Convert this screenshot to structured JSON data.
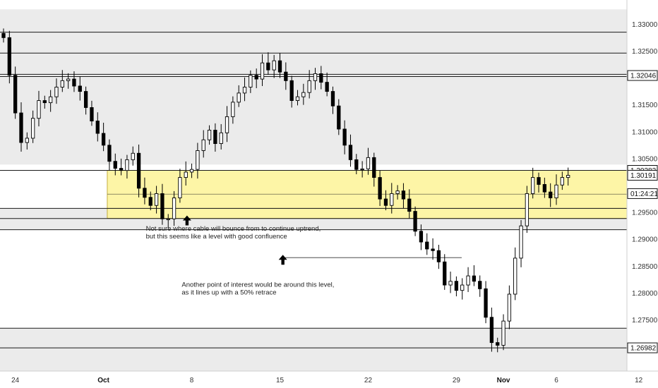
{
  "chart_data": {
    "type": "candlestick",
    "title": "",
    "ylim": [
      1.2655,
      1.3345
    ],
    "xlim": [
      0,
      93
    ],
    "y_ticks": [
      "1.33000",
      "1.32500",
      "1.32046",
      "1.31500",
      "1.31000",
      "1.30500",
      "1.30282",
      "1.30191",
      "01:24:21",
      "1.29500",
      "1.29000",
      "1.28500",
      "1.28000",
      "1.27500",
      "1.26982"
    ],
    "y_tick_values": [
      1.33,
      1.325,
      1.32046,
      1.315,
      1.31,
      1.305,
      1.30282,
      1.30191,
      1.2985,
      1.295,
      1.29,
      1.285,
      1.28,
      1.275,
      1.26982
    ],
    "x_ticks": [
      {
        "label": "24",
        "x": 2,
        "bold": false
      },
      {
        "label": "Oct",
        "x": 17,
        "bold": true
      },
      {
        "label": "8",
        "x": 32,
        "bold": false
      },
      {
        "label": "15",
        "x": 47,
        "bold": false
      },
      {
        "label": "22",
        "x": 62,
        "bold": false
      },
      {
        "label": "29",
        "x": 77,
        "bold": false
      },
      {
        "label": "Nov",
        "x": 85,
        "bold": true
      },
      {
        "label": "6",
        "x": 94,
        "bold": false
      },
      {
        "label": "12",
        "x": 108,
        "bold": false
      }
    ],
    "series": [
      {
        "type": "close-line",
        "values": [
          1.3275,
          1.3205,
          1.3135,
          1.308,
          1.3088,
          1.3125,
          1.3158,
          1.3154,
          1.3165,
          1.3183,
          1.3195,
          1.3198,
          1.3185,
          1.3175,
          1.3145,
          1.312,
          1.3097,
          1.3075,
          1.3045,
          1.3032,
          1.3028,
          1.3048,
          1.306,
          1.2995,
          1.2978,
          1.2963,
          1.2985,
          1.2938,
          1.2938,
          1.2977,
          1.3015,
          1.3025,
          1.303,
          1.3065,
          1.3085,
          1.3103,
          1.3078,
          1.3098,
          1.3128,
          1.3155,
          1.3172,
          1.3183,
          1.3205,
          1.3198,
          1.3228,
          1.3215,
          1.3232,
          1.3211,
          1.3195,
          1.3158,
          1.3165,
          1.3173,
          1.3195,
          1.3208,
          1.3192,
          1.3175,
          1.3148,
          1.3105,
          1.3075,
          1.3048,
          1.303,
          1.3031,
          1.3052,
          1.3015,
          1.2975,
          1.2963,
          1.2985,
          1.299,
          1.2975,
          1.2952,
          1.2915,
          1.2895,
          1.2882,
          1.2879,
          1.2858,
          1.2815,
          1.2822,
          1.2805,
          1.2815,
          1.2832,
          1.2822,
          1.2808,
          1.2755,
          1.2708,
          1.2703,
          1.2748,
          1.2798,
          1.2865,
          1.2925,
          1.2985,
          1.3015,
          1.3002,
          1.2988,
          1.2977,
          1.3001,
          1.3015,
          1.3019
        ]
      },
      {
        "type": "hlines",
        "values": [
          1.32852,
          1.32463,
          1.32068,
          1.32027,
          1.30282,
          1.29575,
          1.29387,
          1.29178,
          1.27347,
          1.26982
        ]
      },
      {
        "type": "zones",
        "values": [
          [
            1.3039,
            1.33276
          ],
          [
            1.29178,
            1.29575
          ],
          [
            1.26555,
            1.27347
          ]
        ]
      },
      {
        "type": "support-zone",
        "values": [
          1.2939,
          1.30282
        ],
        "x_range": [
          18,
          93
        ]
      },
      {
        "type": "level-line",
        "values": [
          1.2866
        ],
        "x_range": [
          47.5,
          63.5
        ]
      }
    ],
    "annotations": [
      {
        "lines": [
          "Not sure where cable will bounce from to continue uptrend,",
          "but this seems like a level with good confluence"
        ],
        "x": 24.2,
        "y": 1.2916,
        "arrow_x": 31.2,
        "arrow_y": 1.2935
      },
      {
        "lines": [
          "Another point of interest would be around this level,",
          "as it lines up with a 50% retrace"
        ],
        "x": 30.3,
        "y": 1.2812,
        "arrow_x": 47.5,
        "arrow_y": 1.2862
      }
    ],
    "price_badges": [
      {
        "label": "1.32046",
        "value": 1.32046
      },
      {
        "label": "1.30282",
        "value": 1.30282
      },
      {
        "label": "1.30191",
        "value": 1.30191
      },
      {
        "label": "01:24:21",
        "value": 1.2985
      },
      {
        "label": "1.26982",
        "value": 1.26982
      }
    ],
    "grid": false,
    "colors": {
      "up": "#ffffff",
      "down": "#000000",
      "zone": "#ebebeb",
      "support": "#fdf5a6",
      "support_edge": "#b59a1a"
    }
  }
}
